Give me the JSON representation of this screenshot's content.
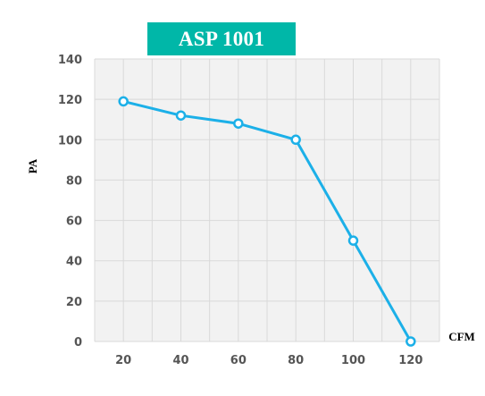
{
  "chart_data": {
    "type": "line",
    "title": "ASP 1001",
    "xlabel": "CFM",
    "ylabel": "PA",
    "x": [
      20,
      40,
      60,
      80,
      100,
      120
    ],
    "series": [
      {
        "values": [
          119,
          112,
          108,
          100,
          50,
          0
        ]
      }
    ],
    "x_ticks": [
      "20",
      "40",
      "60",
      "80",
      "100",
      "120"
    ],
    "y_ticks": [
      "0",
      "20",
      "40",
      "60",
      "80",
      "100",
      "120",
      "140"
    ],
    "ylim": [
      0,
      140
    ],
    "xlim": [
      10,
      130
    ],
    "grid": true,
    "legend": "none",
    "colors": {
      "line": "#1cb0e8",
      "title_bg": "#00b7a8",
      "plot_bg": "#f2f2f2",
      "grid": "#d9d9d9"
    }
  }
}
